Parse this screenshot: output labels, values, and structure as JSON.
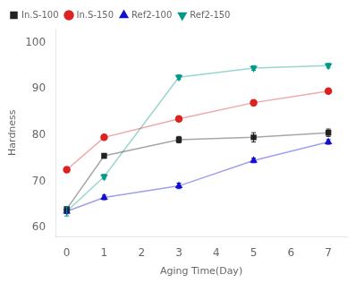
{
  "chart_data": {
    "type": "line",
    "x": [
      0,
      1,
      3,
      5,
      7
    ],
    "series": [
      {
        "name": "In.S-100",
        "color": "#222222",
        "marker": "square",
        "values": [
          64.0,
          75.5,
          79.0,
          79.5,
          80.5
        ],
        "yerr": [
          0.5,
          0.5,
          0.7,
          1.0,
          0.8
        ]
      },
      {
        "name": "In.S-150",
        "color": "#dd2222",
        "marker": "circle",
        "values": [
          72.5,
          79.5,
          83.5,
          87.0,
          89.5
        ],
        "yerr": [
          0.5,
          0.5,
          0.5,
          0.6,
          0.5
        ]
      },
      {
        "name": "Ref2-100",
        "color": "#1111cc",
        "marker": "triangle-up",
        "values": [
          63.5,
          66.5,
          69.0,
          74.5,
          78.5
        ],
        "yerr": [
          0.5,
          0.5,
          0.6,
          0.5,
          0.5
        ]
      },
      {
        "name": "Ref2-150",
        "color": "#009988",
        "marker": "triangle-down",
        "values": [
          63.5,
          71.0,
          92.5,
          94.5,
          95.0
        ],
        "yerr": [
          1.0,
          0.5,
          0.5,
          0.5,
          0.5
        ]
      }
    ],
    "xlabel": "Aging Time(Day)",
    "ylabel": "Hardness",
    "xlim": [
      -0.3,
      7.5
    ],
    "ylim": [
      58,
      103
    ],
    "xticks": [
      0,
      1,
      2,
      3,
      4,
      5,
      6,
      7
    ],
    "yticks": [
      60,
      70,
      80,
      90,
      100
    ],
    "legend": "upper left",
    "grid": false
  }
}
